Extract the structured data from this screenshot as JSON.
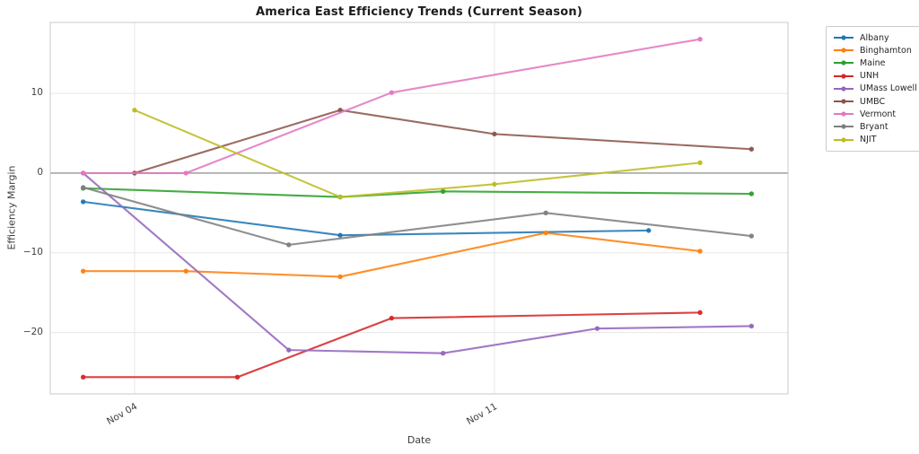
{
  "chart_data": {
    "type": "line",
    "title": "America East Efficiency Trends (Current Season)",
    "xlabel": "Date",
    "ylabel": "Efficiency Margin",
    "grid": true,
    "zero_line": true,
    "legend_position": "outside-right-top",
    "x_axis": {
      "unit": "day of November",
      "range_days": [
        2.36,
        16.71
      ],
      "ticks": [
        {
          "day": 4,
          "label": "Nov 04"
        },
        {
          "day": 11,
          "label": "Nov 11"
        }
      ]
    },
    "y_axis": {
      "range": [
        -27.7,
        18.9
      ],
      "ticks": [
        {
          "v": 10,
          "label": "10"
        },
        {
          "v": 0,
          "label": "0"
        },
        {
          "v": -10,
          "label": "−10"
        },
        {
          "v": -20,
          "label": "−20"
        }
      ]
    },
    "series": [
      {
        "name": "Albany",
        "color": "#1f77b4",
        "points": [
          [
            3,
            -3.6
          ],
          [
            8,
            -7.8
          ],
          [
            14,
            -7.2
          ]
        ]
      },
      {
        "name": "Binghamton",
        "color": "#ff7f0e",
        "points": [
          [
            3,
            -12.3
          ],
          [
            5,
            -12.3
          ],
          [
            8,
            -13.0
          ],
          [
            12,
            -7.5
          ],
          [
            15,
            -9.8
          ]
        ]
      },
      {
        "name": "Maine",
        "color": "#2ca02c",
        "points": [
          [
            3,
            -1.9
          ],
          [
            8,
            -3.0
          ],
          [
            10,
            -2.3
          ],
          [
            16,
            -2.6
          ]
        ]
      },
      {
        "name": "UNH",
        "color": "#d62728",
        "points": [
          [
            3,
            -25.6
          ],
          [
            6,
            -25.6
          ],
          [
            9,
            -18.2
          ],
          [
            15,
            -17.5
          ]
        ]
      },
      {
        "name": "UMass Lowell",
        "color": "#9467bd",
        "points": [
          [
            3,
            0.0
          ],
          [
            7,
            -22.2
          ],
          [
            10,
            -22.6
          ],
          [
            13,
            -19.5
          ],
          [
            16,
            -19.2
          ]
        ]
      },
      {
        "name": "UMBC",
        "color": "#8c564b",
        "points": [
          [
            4,
            0.0
          ],
          [
            8,
            7.9
          ],
          [
            11,
            4.9
          ],
          [
            16,
            3.0
          ]
        ]
      },
      {
        "name": "Vermont",
        "color": "#e377c2",
        "points": [
          [
            3,
            0.0
          ],
          [
            5,
            0.0
          ],
          [
            9,
            10.1
          ],
          [
            15,
            16.8
          ]
        ]
      },
      {
        "name": "Bryant",
        "color": "#7f7f7f",
        "points": [
          [
            3,
            -1.8
          ],
          [
            7,
            -9.0
          ],
          [
            12,
            -5.0
          ],
          [
            16,
            -7.9
          ]
        ]
      },
      {
        "name": "NJIT",
        "color": "#bcbd22",
        "points": [
          [
            4,
            7.9
          ],
          [
            8,
            -3.0
          ],
          [
            11,
            -1.4
          ],
          [
            15,
            1.3
          ]
        ]
      }
    ],
    "style": {
      "grid_color": "#e7e7e7",
      "spine_color": "#c9c9c9",
      "zero_line_color": "#808080",
      "line_width": 2.1,
      "marker_radius": 2.7
    }
  }
}
